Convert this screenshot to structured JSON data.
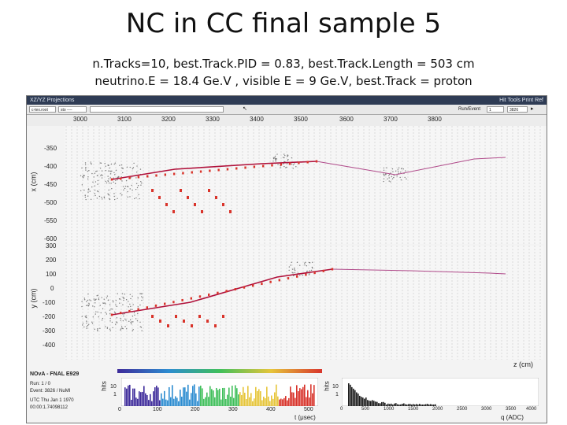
{
  "slide": {
    "title": "NC in CC final sample 5",
    "subtitle_line1": "n.Tracks=10, best.Track.PID = 0.83, best.Track.Length = 503 cm",
    "subtitle_line2": "neutrino.E = 18.4 Ge.V , visible E = 9 Ge.V, best.Track = proton"
  },
  "window": {
    "title": "XZ/YZ Projections",
    "controls": "Hit Tools Print Ref",
    "toolbar": {
      "field1": "c-tex.root",
      "field2": "sto ----",
      "run_label": "Run/Event",
      "run_value": "1",
      "event_value": "3826"
    }
  },
  "views": {
    "z_ticks": [
      "3000",
      "3100",
      "3200",
      "3300",
      "3400",
      "3500",
      "3600",
      "3700",
      "3800"
    ],
    "xz": {
      "ylabel": "x (cm)",
      "yticks": [
        "-350",
        "-400",
        "-450",
        "-500",
        "-550",
        "-600"
      ]
    },
    "yz": {
      "ylabel": "y (cm)",
      "yticks": [
        "300",
        "200",
        "100",
        "0",
        "-100",
        "-200",
        "-300",
        "-400"
      ]
    },
    "zlabel": "z (cm)"
  },
  "info_panel": {
    "experiment": "NOvA - FNAL E929",
    "run": "Run: 1 / 0",
    "event": "Event: 3826 / NuMI",
    "date": "UTC Thu Jan 1 1970",
    "time": "00:00:1.74098112"
  },
  "time_hist": {
    "ylabel": "hits",
    "yticks": [
      "10",
      "1"
    ],
    "xticks": [
      "0",
      "100",
      "200",
      "300",
      "400",
      "500"
    ],
    "xlabel": "t (μsec)"
  },
  "charge_hist": {
    "ylabel": "hits",
    "yticks": [
      "10",
      "1"
    ],
    "xticks": [
      "0",
      "500",
      "1000",
      "1500",
      "2000",
      "2500",
      "3000",
      "3500",
      "4000"
    ],
    "xlabel": "q (ADC)"
  },
  "colors": {
    "track": "#b0103a",
    "hit": "#d9342b",
    "secondary": "#b04a8a",
    "dots": "#7a7a7a",
    "cells": "#c7c7c7"
  }
}
